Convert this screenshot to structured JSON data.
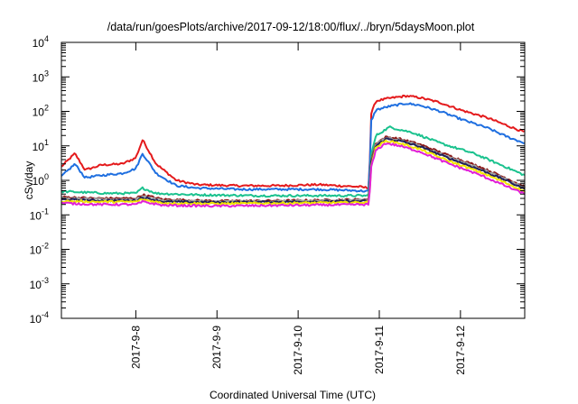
{
  "chart_data": {
    "type": "line",
    "title": "/data/run/goesPlots/archive/2017-09-12/18:00/flux/../bryn/5daysMoon.plot",
    "xlabel": "Coordinated Universal Time (UTC)",
    "ylabel": "cSv/day",
    "yscale": "log",
    "ylim": [
      0.0001,
      10000
    ],
    "xlim": [
      "2017-09-07T02:00",
      "2017-09-12T19:00"
    ],
    "x_ticks": [
      "2017-9-8",
      "2017-9-9",
      "2017-9-10",
      "2017-9-11",
      "2017-9-12"
    ],
    "y_ticks": [
      {
        "base": "10",
        "exp": "-4"
      },
      {
        "base": "10",
        "exp": "-3"
      },
      {
        "base": "10",
        "exp": "-2"
      },
      {
        "base": "10",
        "exp": "-1"
      },
      {
        "base": "10",
        "exp": "0"
      },
      {
        "base": "10",
        "exp": "1"
      },
      {
        "base": "10",
        "exp": "2"
      },
      {
        "base": "10",
        "exp": "3"
      },
      {
        "base": "10",
        "exp": "4"
      }
    ],
    "grid": false,
    "legend": "none",
    "series": [
      {
        "color": "#e41a1c",
        "x": [
          "2017-09-07T02:00",
          "2017-09-07T06:00",
          "2017-09-07T09:00",
          "2017-09-07T14:00",
          "2017-09-07T20:00",
          "2017-09-08T00:00",
          "2017-09-08T02:00",
          "2017-09-08T06:00",
          "2017-09-08T12:00",
          "2017-09-08T18:00",
          "2017-09-09T06:00",
          "2017-09-09T18:00",
          "2017-09-10T06:00",
          "2017-09-10T18:00",
          "2017-09-10T21:00",
          "2017-09-10T21:30",
          "2017-09-10T23:00",
          "2017-09-11T03:00",
          "2017-09-11T08:00",
          "2017-09-11T12:00",
          "2017-09-11T18:00",
          "2017-09-12T00:00",
          "2017-09-12T08:00",
          "2017-09-12T14:00",
          "2017-09-12T19:00"
        ],
        "y": [
          2.5,
          6.0,
          2.0,
          2.8,
          3.0,
          4.5,
          15.0,
          3.0,
          1.0,
          0.75,
          0.7,
          0.7,
          0.75,
          0.65,
          0.6,
          80,
          200,
          240,
          280,
          250,
          180,
          110,
          65,
          38,
          25
        ]
      },
      {
        "color": "#1f6fe0",
        "x": [
          "2017-09-07T02:00",
          "2017-09-07T06:00",
          "2017-09-07T09:00",
          "2017-09-07T14:00",
          "2017-09-07T20:00",
          "2017-09-08T00:00",
          "2017-09-08T02:00",
          "2017-09-08T06:00",
          "2017-09-08T12:00",
          "2017-09-08T18:00",
          "2017-09-09T06:00",
          "2017-09-09T18:00",
          "2017-09-10T06:00",
          "2017-09-10T18:00",
          "2017-09-10T21:00",
          "2017-09-10T21:30",
          "2017-09-10T23:00",
          "2017-09-11T03:00",
          "2017-09-11T08:00",
          "2017-09-11T12:00",
          "2017-09-11T18:00",
          "2017-09-12T00:00",
          "2017-09-12T08:00",
          "2017-09-12T14:00",
          "2017-09-12T19:00"
        ],
        "y": [
          1.3,
          3.0,
          1.2,
          1.4,
          1.6,
          2.2,
          6.0,
          1.6,
          0.7,
          0.6,
          0.55,
          0.55,
          0.55,
          0.5,
          0.48,
          50,
          110,
          140,
          170,
          150,
          100,
          60,
          33,
          18,
          12
        ]
      },
      {
        "color": "#1bc28e",
        "x": [
          "2017-09-07T02:00",
          "2017-09-07T08:00",
          "2017-09-07T16:00",
          "2017-09-08T00:00",
          "2017-09-08T02:00",
          "2017-09-08T06:00",
          "2017-09-08T18:00",
          "2017-09-09T12:00",
          "2017-09-10T06:00",
          "2017-09-10T21:00",
          "2017-09-10T21:30",
          "2017-09-10T23:00",
          "2017-09-11T03:00",
          "2017-09-11T10:00",
          "2017-09-11T18:00",
          "2017-09-12T04:00",
          "2017-09-12T12:00",
          "2017-09-12T19:00"
        ],
        "y": [
          0.48,
          0.45,
          0.42,
          0.42,
          0.6,
          0.42,
          0.38,
          0.36,
          0.36,
          0.36,
          5,
          20,
          35,
          24,
          12,
          6,
          2.8,
          1.4
        ]
      },
      {
        "color": "#8b1a1a",
        "x": [
          "2017-09-07T02:00",
          "2017-09-07T12:00",
          "2017-09-08T00:00",
          "2017-09-08T02:00",
          "2017-09-08T08:00",
          "2017-09-09T00:00",
          "2017-09-10T00:00",
          "2017-09-10T21:00",
          "2017-09-10T21:30",
          "2017-09-10T23:00",
          "2017-09-11T02:00",
          "2017-09-11T06:00",
          "2017-09-11T12:00",
          "2017-09-11T20:00",
          "2017-09-12T06:00",
          "2017-09-12T14:00",
          "2017-09-12T19:00"
        ],
        "y": [
          0.33,
          0.3,
          0.3,
          0.38,
          0.28,
          0.25,
          0.26,
          0.28,
          3.5,
          12,
          18,
          16,
          11,
          5.5,
          2.4,
          1.1,
          0.65
        ]
      },
      {
        "color": "#a0a0a0",
        "x": [
          "2017-09-07T02:00",
          "2017-09-07T12:00",
          "2017-09-08T00:00",
          "2017-09-08T02:00",
          "2017-09-08T08:00",
          "2017-09-09T00:00",
          "2017-09-10T00:00",
          "2017-09-10T21:00",
          "2017-09-10T21:30",
          "2017-09-10T23:00",
          "2017-09-11T02:00",
          "2017-09-11T06:00",
          "2017-09-11T12:00",
          "2017-09-11T20:00",
          "2017-09-12T06:00",
          "2017-09-12T14:00",
          "2017-09-12T19:00"
        ],
        "y": [
          0.3,
          0.28,
          0.28,
          0.34,
          0.26,
          0.24,
          0.25,
          0.27,
          3.2,
          11,
          17,
          15,
          10,
          5.0,
          2.2,
          1.0,
          0.6
        ]
      },
      {
        "color": "#20205a",
        "x": [
          "2017-09-07T02:00",
          "2017-09-07T12:00",
          "2017-09-08T00:00",
          "2017-09-08T02:00",
          "2017-09-08T08:00",
          "2017-09-09T00:00",
          "2017-09-10T00:00",
          "2017-09-10T21:00",
          "2017-09-10T21:30",
          "2017-09-10T23:00",
          "2017-09-11T02:00",
          "2017-09-11T06:00",
          "2017-09-11T12:00",
          "2017-09-11T20:00",
          "2017-09-12T06:00",
          "2017-09-12T14:00",
          "2017-09-12T19:00"
        ],
        "y": [
          0.28,
          0.26,
          0.26,
          0.32,
          0.24,
          0.23,
          0.24,
          0.25,
          3.0,
          10,
          16,
          14,
          9.5,
          4.6,
          2.0,
          0.95,
          0.55
        ]
      },
      {
        "color": "#f2e600",
        "x": [
          "2017-09-07T02:00",
          "2017-09-07T12:00",
          "2017-09-08T00:00",
          "2017-09-08T02:00",
          "2017-09-08T08:00",
          "2017-09-09T00:00",
          "2017-09-10T00:00",
          "2017-09-10T21:00",
          "2017-09-10T21:30",
          "2017-09-10T23:00",
          "2017-09-11T02:00",
          "2017-09-11T06:00",
          "2017-09-11T12:00",
          "2017-09-11T20:00",
          "2017-09-12T06:00",
          "2017-09-12T14:00",
          "2017-09-12T19:00"
        ],
        "y": [
          0.25,
          0.24,
          0.24,
          0.28,
          0.22,
          0.21,
          0.22,
          0.23,
          2.6,
          9,
          14,
          12,
          8.0,
          3.8,
          1.7,
          0.8,
          0.47
        ]
      },
      {
        "color": "#e020d8",
        "x": [
          "2017-09-07T02:00",
          "2017-09-07T12:00",
          "2017-09-08T00:00",
          "2017-09-08T02:00",
          "2017-09-08T08:00",
          "2017-09-09T00:00",
          "2017-09-10T00:00",
          "2017-09-10T21:00",
          "2017-09-10T21:30",
          "2017-09-10T23:00",
          "2017-09-11T02:00",
          "2017-09-11T06:00",
          "2017-09-11T12:00",
          "2017-09-11T20:00",
          "2017-09-12T06:00",
          "2017-09-12T14:00",
          "2017-09-12T19:00"
        ],
        "y": [
          0.22,
          0.2,
          0.2,
          0.24,
          0.19,
          0.18,
          0.19,
          0.2,
          2.2,
          7.5,
          12,
          10,
          6.8,
          3.2,
          1.4,
          0.65,
          0.4
        ]
      }
    ]
  }
}
